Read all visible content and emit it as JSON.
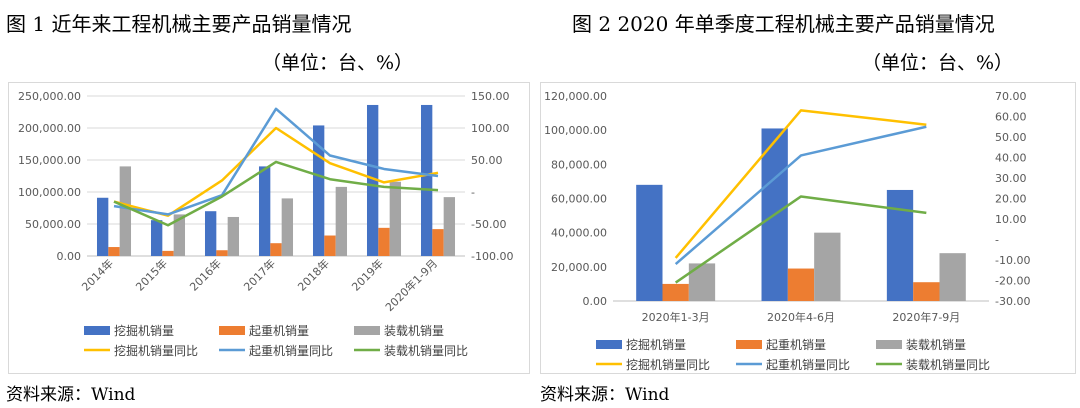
{
  "chart_data": [
    {
      "type": "bar",
      "title": "图 1   近年来工程机械主要产品销量情况",
      "unit": "（单位：台、%）",
      "source": "资料来源：Wind",
      "categories": [
        "2014年",
        "2015年",
        "2016年",
        "2017年",
        "2018年",
        "2019年",
        "2020年1-9月"
      ],
      "y_ticks": [
        "250,000.00",
        "200,000.00",
        "150,000.00",
        "100,000.00",
        "50,000.00",
        "0.00"
      ],
      "y2_ticks": [
        "150.00",
        "100.00",
        "50.00",
        "-",
        "-50.00",
        "-100.00"
      ],
      "ylim": [
        0,
        250000
      ],
      "y2lim": [
        -100,
        150
      ],
      "grid": true,
      "legend": "bottom",
      "series": [
        {
          "name": "挖掘机销量",
          "kind": "bar",
          "color": "#4472C4",
          "values": [
            91000,
            56000,
            70000,
            140000,
            204000,
            236000,
            236000
          ]
        },
        {
          "name": "起重机销量",
          "kind": "bar",
          "color": "#ED7D31",
          "values": [
            14000,
            8000,
            9000,
            20000,
            32000,
            44000,
            42000
          ]
        },
        {
          "name": "装载机销量",
          "kind": "bar",
          "color": "#A5A5A5",
          "values": [
            140000,
            65000,
            61000,
            90000,
            108000,
            116000,
            92000
          ]
        },
        {
          "name": "挖掘机销量同比",
          "kind": "line",
          "axis": "y2",
          "color": "#FFC000",
          "values": [
            -15,
            -37,
            18,
            100,
            45,
            15,
            30
          ]
        },
        {
          "name": "起重机销量同比",
          "kind": "line",
          "axis": "y2",
          "color": "#5B9BD5",
          "values": [
            -22,
            -35,
            -5,
            130,
            57,
            36,
            25
          ]
        },
        {
          "name": "装载机销量同比",
          "kind": "line",
          "axis": "y2",
          "color": "#70AD47",
          "values": [
            -15,
            -52,
            -7,
            47,
            20,
            8,
            3
          ]
        }
      ]
    },
    {
      "type": "bar",
      "title": "图 2   2020 年单季度工程机械主要产品销量情况",
      "unit": "（单位：台、%）",
      "source": "资料来源：Wind",
      "categories": [
        "2020年1-3月",
        "2020年4-6月",
        "2020年7-9月"
      ],
      "y_ticks": [
        "120,000.00",
        "100,000.00",
        "80,000.00",
        "60,000.00",
        "40,000.00",
        "20,000.00",
        "0.00"
      ],
      "y2_ticks": [
        "70.00",
        "60.00",
        "50.00",
        "40.00",
        "30.00",
        "20.00",
        "10.00",
        "-",
        "-10.00",
        "-20.00",
        "-30.00"
      ],
      "ylim": [
        0,
        120000
      ],
      "y2lim": [
        -30,
        70
      ],
      "grid": false,
      "legend": "bottom",
      "series": [
        {
          "name": "挖掘机销量",
          "kind": "bar",
          "color": "#4472C4",
          "values": [
            68000,
            101000,
            65000
          ]
        },
        {
          "name": "起重机销量",
          "kind": "bar",
          "color": "#ED7D31",
          "values": [
            10000,
            19000,
            11000
          ]
        },
        {
          "name": "装载机销量",
          "kind": "bar",
          "color": "#A5A5A5",
          "values": [
            22000,
            40000,
            28000
          ]
        },
        {
          "name": "挖掘机销量同比",
          "kind": "line",
          "axis": "y2",
          "color": "#FFC000",
          "values": [
            -9,
            63,
            56
          ]
        },
        {
          "name": "起重机销量同比",
          "kind": "line",
          "axis": "y2",
          "color": "#5B9BD5",
          "values": [
            -12,
            41,
            55
          ]
        },
        {
          "name": "装载机销量同比",
          "kind": "line",
          "axis": "y2",
          "color": "#70AD47",
          "values": [
            -21,
            21,
            13
          ]
        }
      ]
    }
  ]
}
